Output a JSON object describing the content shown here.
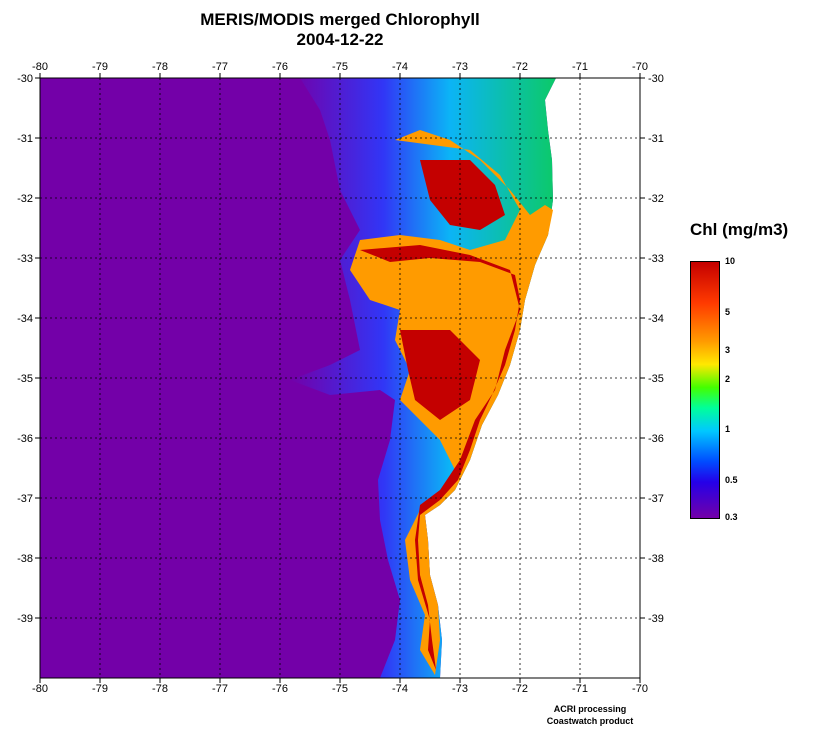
{
  "title": "MERIS/MODIS merged Chlorophyll",
  "date": "2004-12-22",
  "map": {
    "lon_ticks": [
      "-80",
      "-79",
      "-78",
      "-77",
      "-76",
      "-75",
      "-74",
      "-73",
      "-72",
      "-71",
      "-70"
    ],
    "lat_ticks": [
      "-30",
      "-31",
      "-32",
      "-33",
      "-34",
      "-35",
      "-36",
      "-37",
      "-38",
      "-39"
    ],
    "lon_range": [
      -80,
      -70
    ],
    "lat_range": [
      -40,
      -30
    ],
    "grid": true,
    "colors": {
      "ocean_low": "#7300a8",
      "land": "#ffffff",
      "high_chl": "#c40000",
      "grid": "#000000"
    }
  },
  "colorbar": {
    "title": "Chl (mg/m3)",
    "labels": [
      "10",
      "5",
      "3",
      "2",
      "1",
      "0.5",
      "0.3"
    ]
  },
  "credit": {
    "line1": "ACRI processing",
    "line2": "Coastwatch product"
  }
}
